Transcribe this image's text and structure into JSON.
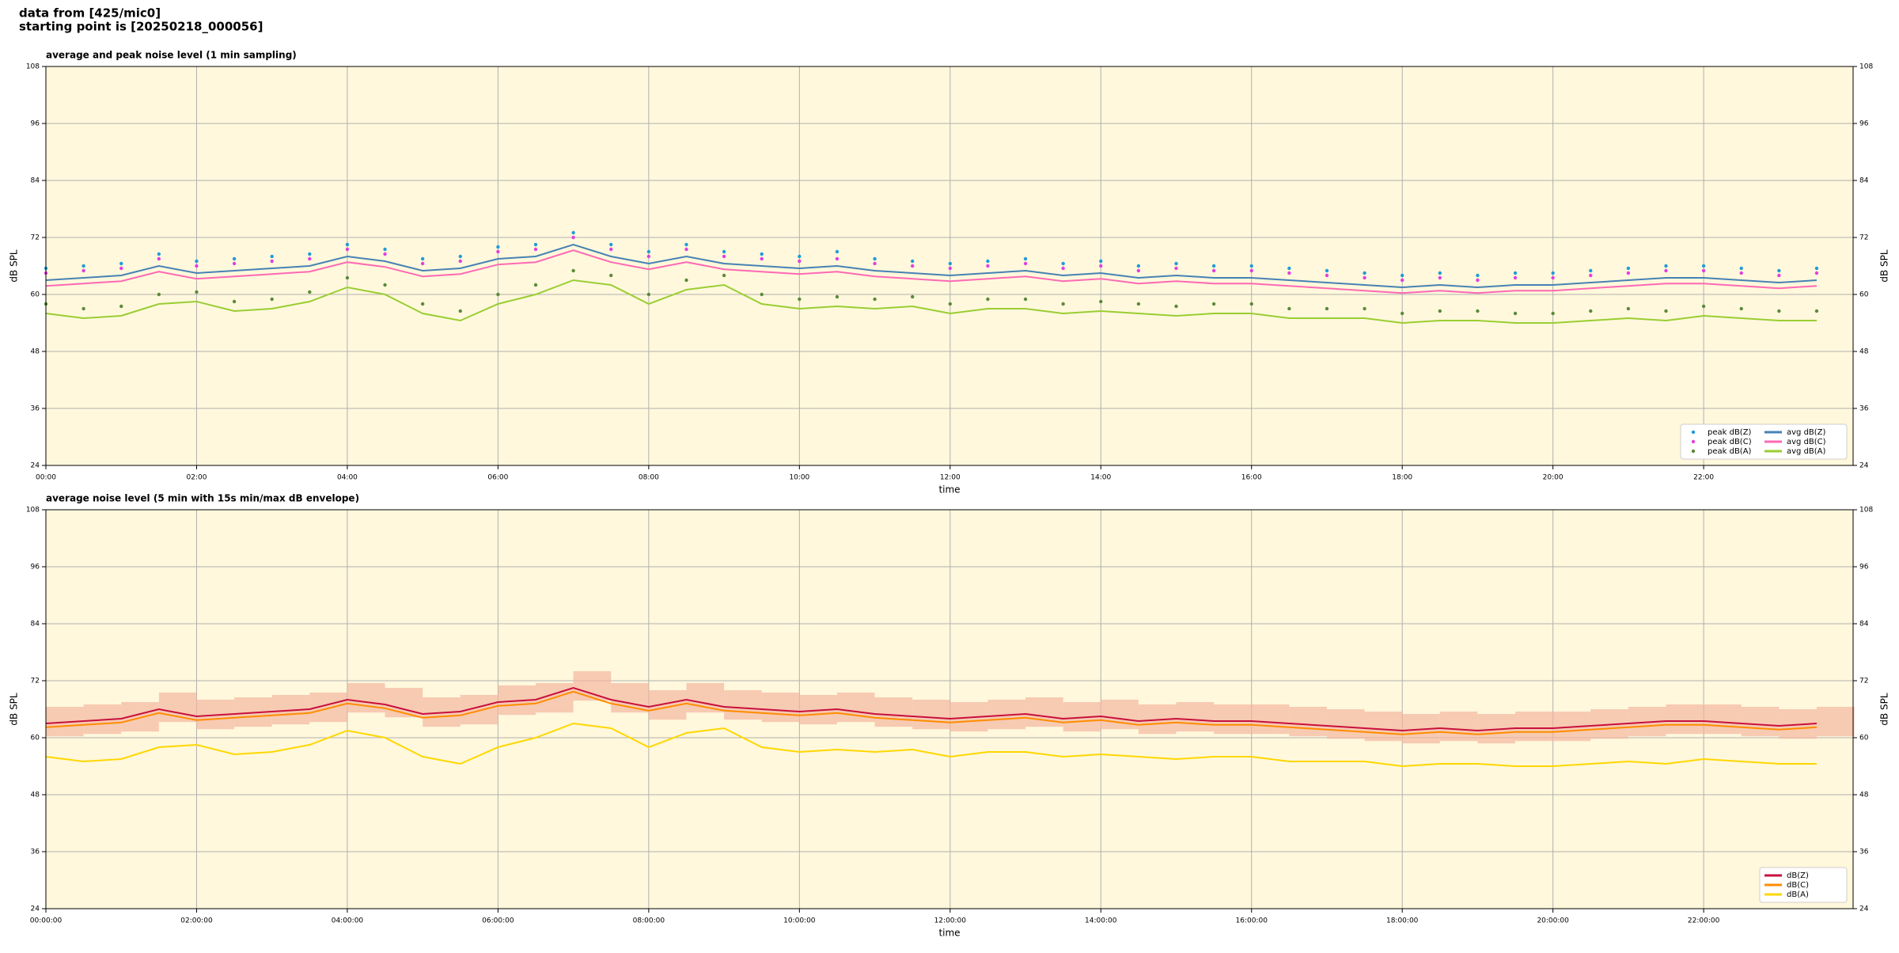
{
  "header": {
    "line1": "data from [425/mic0]",
    "line2": "starting point is [20250218_000056]"
  },
  "chart_data": [
    {
      "type": "line",
      "title": "average and peak noise level (1 min sampling)",
      "x_label": "time",
      "y_label": "dB SPL",
      "y2_label": "dB SPL",
      "background": "#fff8dc",
      "grid": true,
      "legend": "lower right",
      "legend_columns": 2,
      "xlim": [
        "00:00",
        "23:59"
      ],
      "xticks": [
        "00:00",
        "02:00",
        "04:00",
        "06:00",
        "08:00",
        "10:00",
        "12:00",
        "14:00",
        "16:00",
        "18:00",
        "20:00",
        "22:00"
      ],
      "ylim": [
        24,
        108
      ],
      "yticks": [
        24,
        36,
        48,
        60,
        72,
        84,
        96,
        108
      ],
      "x": [
        "00:00",
        "00:30",
        "01:00",
        "01:30",
        "02:00",
        "02:30",
        "03:00",
        "03:30",
        "04:00",
        "04:30",
        "05:00",
        "05:30",
        "06:00",
        "06:30",
        "07:00",
        "07:30",
        "08:00",
        "08:30",
        "09:00",
        "09:30",
        "10:00",
        "10:30",
        "11:00",
        "11:30",
        "12:00",
        "12:30",
        "13:00",
        "13:30",
        "14:00",
        "14:30",
        "15:00",
        "15:30",
        "16:00",
        "16:30",
        "17:00",
        "17:30",
        "18:00",
        "18:30",
        "19:00",
        "19:30",
        "20:00",
        "20:30",
        "21:00",
        "21:30",
        "22:00",
        "22:30",
        "23:00",
        "23:30"
      ],
      "series": [
        {
          "name": "peak dB(Z)",
          "style": "dots",
          "color": "#1f9bd8",
          "values": [
            65.5,
            66,
            66.5,
            68.5,
            67,
            67.5,
            68,
            68.5,
            70.5,
            69.5,
            67.5,
            68,
            70,
            70.5,
            73,
            70.5,
            69,
            70.5,
            69,
            68.5,
            68,
            69,
            67.5,
            67,
            66.5,
            67,
            67.5,
            66.5,
            67,
            66,
            66.5,
            66,
            66,
            65.5,
            65,
            64.5,
            64,
            64.5,
            64,
            64.5,
            64.5,
            65,
            65.5,
            66,
            66,
            65.5,
            65,
            65.5
          ]
        },
        {
          "name": "peak dB(C)",
          "style": "dots",
          "color": "#e040e0",
          "values": [
            64.5,
            65,
            65.5,
            67.5,
            66,
            66.5,
            67,
            67.5,
            69.5,
            68.5,
            66.5,
            67,
            69,
            69.5,
            72,
            69.5,
            68,
            69.5,
            68,
            67.5,
            67,
            67.5,
            66.5,
            66,
            65.5,
            66,
            66.5,
            65.5,
            66,
            65,
            65.5,
            65,
            65,
            64.5,
            64,
            63.5,
            63,
            63.5,
            63,
            63.5,
            63.5,
            64,
            64.5,
            65,
            65,
            64.5,
            64,
            64.5
          ]
        },
        {
          "name": "peak dB(A)",
          "style": "dots",
          "color": "#5a8a3a",
          "values": [
            58,
            57,
            57.5,
            60,
            60.5,
            58.5,
            59,
            60.5,
            63.5,
            62,
            58,
            56.5,
            60,
            62,
            65,
            64,
            60,
            63,
            64,
            60,
            59,
            59.5,
            59,
            59.5,
            58,
            59,
            59,
            58,
            58.5,
            58,
            57.5,
            58,
            58,
            57,
            57,
            57,
            56,
            56.5,
            56.5,
            56,
            56,
            56.5,
            57,
            56.5,
            57.5,
            57,
            56.5,
            56.5
          ]
        },
        {
          "name": "avg dB(Z)",
          "style": "line",
          "color": "#4682b4",
          "values": [
            63,
            63.5,
            64,
            66,
            64.5,
            65,
            65.5,
            66,
            68,
            67,
            65,
            65.5,
            67.5,
            68,
            70.5,
            68,
            66.5,
            68,
            66.5,
            66,
            65.5,
            66,
            65,
            64.5,
            64,
            64.5,
            65,
            64,
            64.5,
            63.5,
            64,
            63.5,
            63.5,
            63,
            62.5,
            62,
            61.5,
            62,
            61.5,
            62,
            62,
            62.5,
            63,
            63.5,
            63.5,
            63,
            62.5,
            63
          ]
        },
        {
          "name": "avg dB(C)",
          "style": "line",
          "color": "#ff69b4",
          "values": [
            61.8,
            62.3,
            62.8,
            64.8,
            63.3,
            63.8,
            64.3,
            64.8,
            66.8,
            65.8,
            63.8,
            64.3,
            66.3,
            66.8,
            69.3,
            66.8,
            65.3,
            66.8,
            65.3,
            64.8,
            64.3,
            64.8,
            63.8,
            63.3,
            62.8,
            63.3,
            63.8,
            62.8,
            63.3,
            62.3,
            62.8,
            62.3,
            62.3,
            61.8,
            61.3,
            60.8,
            60.3,
            60.8,
            60.3,
            60.8,
            60.8,
            61.3,
            61.8,
            62.3,
            62.3,
            61.8,
            61.3,
            61.8
          ]
        },
        {
          "name": "avg dB(A)",
          "style": "line",
          "color": "#9acd32",
          "values": [
            56,
            55,
            55.5,
            58,
            58.5,
            56.5,
            57,
            58.5,
            61.5,
            60,
            56,
            54.5,
            58,
            60,
            63,
            62,
            58,
            61,
            62,
            58,
            57,
            57.5,
            57,
            57.5,
            56,
            57,
            57,
            56,
            56.5,
            56,
            55.5,
            56,
            56,
            55,
            55,
            55,
            54,
            54.5,
            54.5,
            54,
            54,
            54.5,
            55,
            54.5,
            55.5,
            55,
            54.5,
            54.5
          ]
        }
      ]
    },
    {
      "type": "line",
      "title": "average noise level (5 min with 15s min/max dB envelope)",
      "x_label": "time",
      "y_label": "dB SPL",
      "y2_label": "dB SPL",
      "background": "#fff8dc",
      "grid": true,
      "legend": "lower right",
      "legend_columns": 1,
      "xlim": [
        "00:00:00",
        "23:59:00"
      ],
      "xticks": [
        "00:00:00",
        "02:00:00",
        "04:00:00",
        "06:00:00",
        "08:00:00",
        "10:00:00",
        "12:00:00",
        "14:00:00",
        "16:00:00",
        "18:00:00",
        "20:00:00",
        "22:00:00"
      ],
      "ylim": [
        24,
        108
      ],
      "yticks": [
        24,
        36,
        48,
        60,
        72,
        84,
        96,
        108
      ],
      "x": [
        "00:00:00",
        "00:30:00",
        "01:00:00",
        "01:30:00",
        "02:00:00",
        "02:30:00",
        "03:00:00",
        "03:30:00",
        "04:00:00",
        "04:30:00",
        "05:00:00",
        "05:30:00",
        "06:00:00",
        "06:30:00",
        "07:00:00",
        "07:30:00",
        "08:00:00",
        "08:30:00",
        "09:00:00",
        "09:30:00",
        "10:00:00",
        "10:30:00",
        "11:00:00",
        "11:30:00",
        "12:00:00",
        "12:30:00",
        "13:00:00",
        "13:30:00",
        "14:00:00",
        "14:30:00",
        "15:00:00",
        "15:30:00",
        "16:00:00",
        "16:30:00",
        "17:00:00",
        "17:30:00",
        "18:00:00",
        "18:30:00",
        "19:00:00",
        "19:30:00",
        "20:00:00",
        "20:30:00",
        "21:00:00",
        "21:30:00",
        "22:00:00",
        "22:30:00",
        "23:00:00",
        "23:30:00"
      ],
      "envelope": {
        "color": "#f4b6a0",
        "high": [
          66.5,
          67,
          67.5,
          69.5,
          68,
          68.5,
          69,
          69.5,
          71.5,
          70.5,
          68.5,
          69,
          71,
          71.5,
          74,
          71.5,
          70,
          71.5,
          70,
          69.5,
          69,
          69.5,
          68.5,
          68,
          67.5,
          68,
          68.5,
          67.5,
          68,
          67,
          67.5,
          67,
          67,
          66.5,
          66,
          65.5,
          65,
          65.5,
          65,
          65.5,
          65.5,
          66,
          66.5,
          67,
          67,
          66.5,
          66,
          66.5
        ],
        "low": [
          60.3,
          60.8,
          61.3,
          63.3,
          61.8,
          62.3,
          62.8,
          63.3,
          65.3,
          64.3,
          62.3,
          62.8,
          64.8,
          65.3,
          67.8,
          65.3,
          63.8,
          65.3,
          63.8,
          63.3,
          62.8,
          63.3,
          62.3,
          61.8,
          61.3,
          61.8,
          62.3,
          61.3,
          61.8,
          60.8,
          61.3,
          60.8,
          60.8,
          60.3,
          59.8,
          59.3,
          58.8,
          59.3,
          58.8,
          59.3,
          59.3,
          59.8,
          60.3,
          60.8,
          60.8,
          60.3,
          59.8,
          60.3
        ]
      },
      "series": [
        {
          "name": "dB(Z)",
          "style": "line",
          "color": "#c8103c",
          "values": [
            63,
            63.5,
            64,
            66,
            64.5,
            65,
            65.5,
            66,
            68,
            67,
            65,
            65.5,
            67.5,
            68,
            70.5,
            68,
            66.5,
            68,
            66.5,
            66,
            65.5,
            66,
            65,
            64.5,
            64,
            64.5,
            65,
            64,
            64.5,
            63.5,
            64,
            63.5,
            63.5,
            63,
            62.5,
            62,
            61.5,
            62,
            61.5,
            62,
            62,
            62.5,
            63,
            63.5,
            63.5,
            63,
            62.5,
            63
          ]
        },
        {
          "name": "dB(C)",
          "style": "line",
          "color": "#ff8c00",
          "values": [
            62.2,
            62.7,
            63.2,
            65.2,
            63.7,
            64.2,
            64.7,
            65.2,
            67.2,
            66.2,
            64.2,
            64.7,
            66.7,
            67.2,
            69.7,
            67.2,
            65.7,
            67.2,
            65.7,
            65.2,
            64.7,
            65.2,
            64.2,
            63.7,
            63.2,
            63.7,
            64.2,
            63.2,
            63.7,
            62.7,
            63.2,
            62.7,
            62.7,
            62.2,
            61.7,
            61.2,
            60.7,
            61.2,
            60.7,
            61.2,
            61.2,
            61.7,
            62.2,
            62.7,
            62.7,
            62.2,
            61.7,
            62.2
          ]
        },
        {
          "name": "dB(A)",
          "style": "line",
          "color": "#ffd700",
          "values": [
            56,
            55,
            55.5,
            58,
            58.5,
            56.5,
            57,
            58.5,
            61.5,
            60,
            56,
            54.5,
            58,
            60,
            63,
            62,
            58,
            61,
            62,
            58,
            57,
            57.5,
            57,
            57.5,
            56,
            57,
            57,
            56,
            56.5,
            56,
            55.5,
            56,
            56,
            55,
            55,
            55,
            54,
            54.5,
            54.5,
            54,
            54,
            54.5,
            55,
            54.5,
            55.5,
            55,
            54.5,
            54.5
          ]
        }
      ]
    }
  ]
}
